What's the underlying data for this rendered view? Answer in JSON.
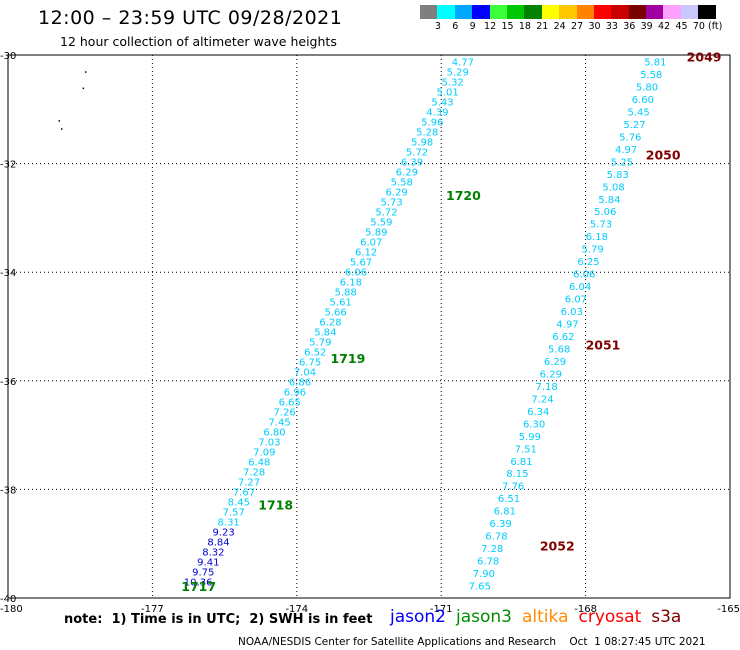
{
  "header": {
    "title": "12:00 – 23:59 UTC 09/28/2021",
    "subtitle": "12 hour collection of altimeter wave heights"
  },
  "legend": {
    "unit": "(ft)",
    "labels": [
      "3",
      "6",
      "9",
      "12",
      "15",
      "18",
      "21",
      "24",
      "27",
      "30",
      "33",
      "36",
      "39",
      "42",
      "45",
      "70"
    ],
    "colors": [
      "#7f7f7f",
      "#00ffff",
      "#00a8ff",
      "#0000ff",
      "#3cff3c",
      "#00c800",
      "#008200",
      "#ffff00",
      "#ffc800",
      "#ff8200",
      "#ff0000",
      "#c80000",
      "#780000",
      "#a000a0",
      "#ffa0ff",
      "#c8c8ff",
      "#000000"
    ]
  },
  "map": {
    "lon_range": [
      -180,
      -165
    ],
    "lat_range": [
      -40,
      -30
    ],
    "lon_ticks": [
      "-180",
      "-177",
      "-174",
      "-171",
      "-168",
      "-165"
    ],
    "lat_ticks": [
      "-30",
      "-32",
      "-34",
      "-36",
      "-38",
      "-40"
    ],
    "grid": true,
    "land_dots": [
      {
        "lon": -178.4,
        "lat": -30.3
      },
      {
        "lon": -178.45,
        "lat": -30.6
      },
      {
        "lon": -178.95,
        "lat": -31.2
      },
      {
        "lon": -178.9,
        "lat": -31.35
      }
    ]
  },
  "tracks": [
    {
      "color": "#00ccff",
      "start": {
        "lon": -170.55,
        "lat": -30.12
      },
      "end": {
        "lon": -176.05,
        "lat": -39.7
      },
      "values": [
        "4.77",
        "5.29",
        "5.32",
        "5.01",
        "5.43",
        "4.39",
        "5.96",
        "5.28",
        "5.98",
        "5.72",
        "6.39",
        "6.29",
        "5.58",
        "6.29",
        "5.73",
        "5.72",
        "5.59",
        "5.89",
        "6.07",
        "6.12",
        "5.67",
        "6.06",
        "6.18",
        "5.88",
        "5.61",
        "5.66",
        "6.28",
        "5.84",
        "5.79",
        "6.52",
        "6.75",
        "7.04",
        "6.86",
        "6.96",
        "6.65",
        "7.26",
        "7.45",
        "6.80",
        "7.03",
        "7.09",
        "6.48",
        "7.28",
        "7.27",
        "7.67",
        "8.45",
        "7.57",
        "8.31",
        "9.23",
        "8.84",
        "8.32",
        "9.41",
        "9.75",
        "10.36"
      ],
      "dark_from": 47,
      "dark_color": "#0000cc",
      "passes": [
        {
          "label": "1720",
          "lon": -170.9,
          "lat": -32.6,
          "color": "#008000"
        },
        {
          "label": "1719",
          "lon": -173.3,
          "lat": -35.6,
          "color": "#008000"
        },
        {
          "label": "1718",
          "lon": -174.8,
          "lat": -38.3,
          "color": "#008000"
        },
        {
          "label": "1717",
          "lon": -176.4,
          "lat": -39.8,
          "color": "#008000"
        }
      ]
    },
    {
      "color": "#00ccff",
      "start": {
        "lon": -166.55,
        "lat": -30.12
      },
      "end": {
        "lon": -170.2,
        "lat": -39.77
      },
      "values": [
        "5.81",
        "5.58",
        "5.80",
        "6.60",
        "5.45",
        "5.27",
        "5.76",
        "4.97",
        "5.25",
        "5.83",
        "5.08",
        "5.84",
        "5.06",
        "5.73",
        "6.18",
        "5.79",
        "6.25",
        "6.06",
        "6.04",
        "6.07",
        "6.03",
        "4.97",
        "6.62",
        "5.68",
        "6.29",
        "6.29",
        "7.18",
        "7.24",
        "6.34",
        "6.30",
        "5.99",
        "7.51",
        "6.81",
        "8.15",
        "7.76",
        "6.51",
        "6.81",
        "6.39",
        "6.78",
        "7.28",
        "6.78",
        "7.90",
        "7.65"
      ],
      "dark_from": -1,
      "dark_color": "#0000cc",
      "passes": [
        {
          "label": "2049",
          "lon": -165.9,
          "lat": -30.05,
          "color": "#800000"
        },
        {
          "label": "2050",
          "lon": -166.75,
          "lat": -31.85,
          "color": "#800000"
        },
        {
          "label": "2051",
          "lon": -168.0,
          "lat": -35.35,
          "color": "#800000"
        },
        {
          "label": "2052",
          "lon": -168.95,
          "lat": -39.05,
          "color": "#800000"
        }
      ]
    }
  ],
  "footer": {
    "note": "note:  1) Time is in UTC;  2) SWH is in feet",
    "missions": [
      {
        "name": "jason2",
        "color": "#0000ff"
      },
      {
        "name": "jason3",
        "color": "#008c00"
      },
      {
        "name": "altika",
        "color": "#ff8c00"
      },
      {
        "name": "cryosat",
        "color": "#ff0000"
      },
      {
        "name": "s3a",
        "color": "#800000"
      }
    ],
    "credit": "NOAA/NESDIS Center for Satellite Applications and Research    Oct  1 08:27:45 UTC 2021"
  }
}
